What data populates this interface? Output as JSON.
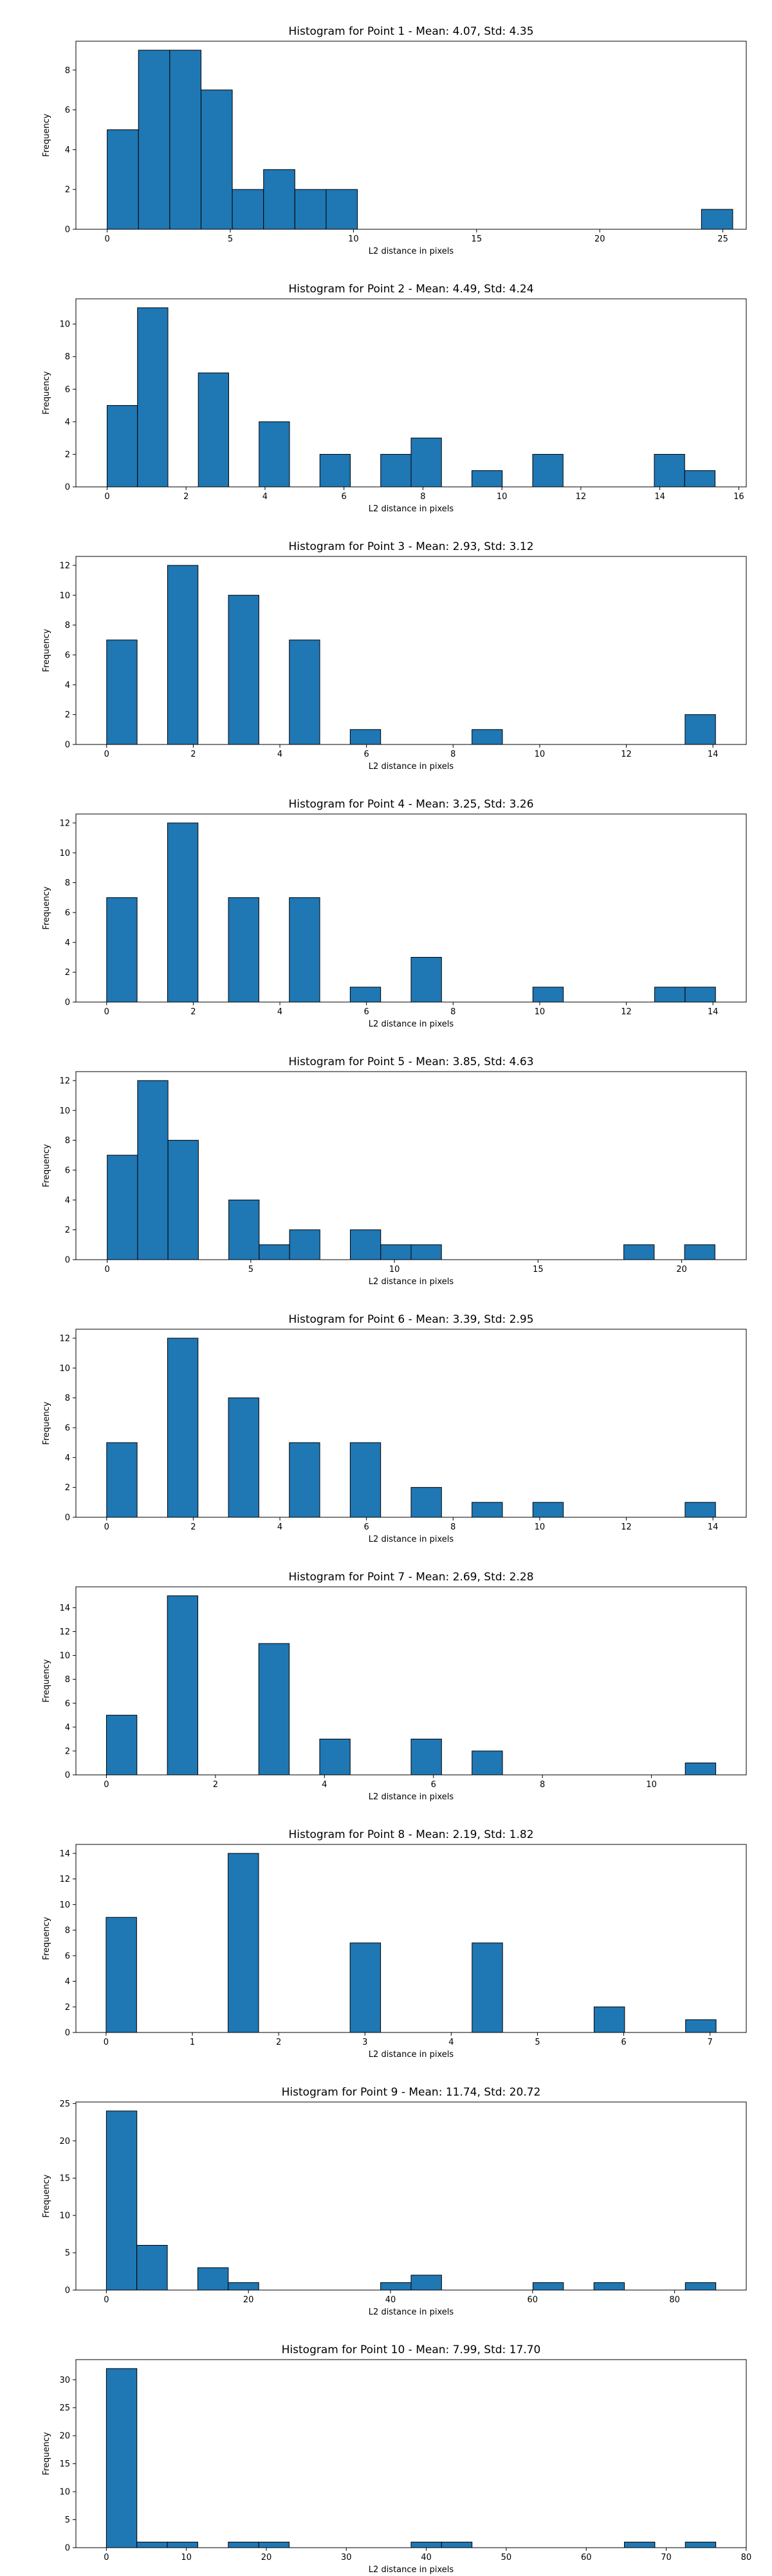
{
  "figure": {
    "bar_color": "#1f77b4",
    "edge_color": "#000000",
    "background": "#ffffff"
  },
  "chart_data": [
    {
      "type": "bar",
      "title": "Histogram for Point 1 - Mean: 4.07, Std: 4.35",
      "xlabel": "L2 distance in pixels",
      "ylabel": "Frequency",
      "xlim": [
        -1.27,
        25.95
      ],
      "ylim": [
        0,
        9.45
      ],
      "xticks": [
        0,
        5,
        10,
        15,
        20,
        25
      ],
      "xtick_labels": [
        "0",
        "5",
        "10",
        "15",
        "20",
        "25"
      ],
      "yticks": [
        0,
        2,
        4,
        6,
        8
      ],
      "ytick_labels": [
        "0",
        "2",
        "4",
        "6",
        "8"
      ],
      "bin_edges": [
        0.0,
        1.27,
        2.54,
        3.81,
        5.08,
        6.35,
        7.62,
        8.89,
        10.16,
        11.43,
        12.7,
        13.97,
        15.24,
        16.51,
        17.78,
        19.05,
        20.32,
        21.59,
        22.86,
        24.13,
        25.4
      ],
      "counts": [
        5,
        9,
        9,
        7,
        2,
        3,
        2,
        2,
        0,
        0,
        0,
        0,
        0,
        0,
        0,
        0,
        0,
        0,
        0,
        1
      ],
      "grid": false,
      "legend": "none"
    },
    {
      "type": "bar",
      "title": "Histogram for Point 2 - Mean: 4.49, Std: 4.24",
      "xlabel": "L2 distance in pixels",
      "ylabel": "Frequency",
      "xlim": [
        -0.79,
        16.19
      ],
      "ylim": [
        0,
        11.55
      ],
      "xticks": [
        0,
        2,
        4,
        6,
        8,
        10,
        12,
        14,
        16
      ],
      "xtick_labels": [
        "0",
        "2",
        "4",
        "6",
        "8",
        "10",
        "12",
        "14",
        "16"
      ],
      "yticks": [
        0,
        2,
        4,
        6,
        8,
        10
      ],
      "ytick_labels": [
        "0",
        "2",
        "4",
        "6",
        "8",
        "10"
      ],
      "bin_edges": [
        0.0,
        0.77,
        1.54,
        2.31,
        3.08,
        3.85,
        4.62,
        5.39,
        6.16,
        6.93,
        7.7,
        8.47,
        9.24,
        10.01,
        10.78,
        11.55,
        12.32,
        13.09,
        13.86,
        14.63,
        15.4
      ],
      "counts": [
        5,
        11,
        0,
        7,
        0,
        4,
        0,
        2,
        0,
        2,
        3,
        0,
        1,
        0,
        2,
        0,
        0,
        0,
        2,
        1
      ],
      "grid": false,
      "legend": "none"
    },
    {
      "type": "bar",
      "title": "Histogram for Point 3 - Mean: 2.93, Std: 3.12",
      "xlabel": "L2 distance in pixels",
      "ylabel": "Frequency",
      "xlim": [
        -0.71,
        14.77
      ],
      "ylim": [
        0,
        12.6
      ],
      "xticks": [
        0,
        2,
        4,
        6,
        8,
        10,
        12,
        14
      ],
      "xtick_labels": [
        "0",
        "2",
        "4",
        "6",
        "8",
        "10",
        "12",
        "14"
      ],
      "yticks": [
        0,
        2,
        4,
        6,
        8,
        10,
        12
      ],
      "ytick_labels": [
        "0",
        "2",
        "4",
        "6",
        "8",
        "10",
        "12"
      ],
      "bin_edges": [
        0.0,
        0.703,
        1.406,
        2.109,
        2.812,
        3.515,
        4.218,
        4.921,
        5.624,
        6.327,
        7.03,
        7.733,
        8.436,
        9.139,
        9.842,
        10.545,
        11.248,
        11.951,
        12.654,
        13.357,
        14.06
      ],
      "counts": [
        7,
        0,
        12,
        0,
        10,
        0,
        7,
        0,
        1,
        0,
        0,
        0,
        1,
        0,
        0,
        0,
        0,
        0,
        0,
        2
      ],
      "grid": false,
      "legend": "none"
    },
    {
      "type": "bar",
      "title": "Histogram for Point 4 - Mean: 3.25, Std: 3.26",
      "xlabel": "L2 distance in pixels",
      "ylabel": "Frequency",
      "xlim": [
        -0.71,
        14.77
      ],
      "ylim": [
        0,
        12.6
      ],
      "xticks": [
        0,
        2,
        4,
        6,
        8,
        10,
        12,
        14
      ],
      "xtick_labels": [
        "0",
        "2",
        "4",
        "6",
        "8",
        "10",
        "12",
        "14"
      ],
      "yticks": [
        0,
        2,
        4,
        6,
        8,
        10,
        12
      ],
      "ytick_labels": [
        "0",
        "2",
        "4",
        "6",
        "8",
        "10",
        "12"
      ],
      "bin_edges": [
        0.0,
        0.703,
        1.406,
        2.109,
        2.812,
        3.515,
        4.218,
        4.921,
        5.624,
        6.327,
        7.03,
        7.733,
        8.436,
        9.139,
        9.842,
        10.545,
        11.248,
        11.951,
        12.654,
        13.357,
        14.06
      ],
      "counts": [
        7,
        0,
        12,
        0,
        7,
        0,
        7,
        0,
        1,
        0,
        3,
        0,
        0,
        0,
        1,
        0,
        0,
        0,
        1,
        1
      ],
      "grid": false,
      "legend": "none"
    },
    {
      "type": "bar",
      "title": "Histogram for Point 5 - Mean: 3.85, Std: 4.63",
      "xlabel": "L2 distance in pixels",
      "ylabel": "Frequency",
      "xlim": [
        -1.09,
        22.25
      ],
      "ylim": [
        0,
        12.6
      ],
      "xticks": [
        0,
        5,
        10,
        15,
        20
      ],
      "xtick_labels": [
        "0",
        "5",
        "10",
        "15",
        "20"
      ],
      "yticks": [
        0,
        2,
        4,
        6,
        8,
        10,
        12
      ],
      "ytick_labels": [
        "0",
        "2",
        "4",
        "6",
        "8",
        "10",
        "12"
      ],
      "bin_edges": [
        0.0,
        1.058,
        2.116,
        3.174,
        4.232,
        5.29,
        6.348,
        7.406,
        8.464,
        9.522,
        10.58,
        11.638,
        12.696,
        13.754,
        14.812,
        15.87,
        16.928,
        17.986,
        19.044,
        20.102,
        21.16
      ],
      "counts": [
        7,
        12,
        8,
        0,
        4,
        1,
        2,
        0,
        2,
        1,
        1,
        0,
        0,
        0,
        0,
        0,
        0,
        1,
        0,
        1
      ],
      "grid": false,
      "legend": "none"
    },
    {
      "type": "bar",
      "title": "Histogram for Point 6 - Mean: 3.39, Std: 2.95",
      "xlabel": "L2 distance in pixels",
      "ylabel": "Frequency",
      "xlim": [
        -0.71,
        14.77
      ],
      "ylim": [
        0,
        12.6
      ],
      "xticks": [
        0,
        2,
        4,
        6,
        8,
        10,
        12,
        14
      ],
      "xtick_labels": [
        "0",
        "2",
        "4",
        "6",
        "8",
        "10",
        "12",
        "14"
      ],
      "yticks": [
        0,
        2,
        4,
        6,
        8,
        10,
        12
      ],
      "ytick_labels": [
        "0",
        "2",
        "4",
        "6",
        "8",
        "10",
        "12"
      ],
      "bin_edges": [
        0.0,
        0.703,
        1.406,
        2.109,
        2.812,
        3.515,
        4.218,
        4.921,
        5.624,
        6.327,
        7.03,
        7.733,
        8.436,
        9.139,
        9.842,
        10.545,
        11.248,
        11.951,
        12.654,
        13.357,
        14.06
      ],
      "counts": [
        5,
        0,
        12,
        0,
        8,
        0,
        5,
        0,
        5,
        0,
        2,
        0,
        1,
        0,
        1,
        0,
        0,
        0,
        0,
        1
      ],
      "grid": false,
      "legend": "none"
    },
    {
      "type": "bar",
      "title": "Histogram for Point 7 - Mean: 2.69, Std: 2.28",
      "xlabel": "L2 distance in pixels",
      "ylabel": "Frequency",
      "xlim": [
        -0.56,
        11.74
      ],
      "ylim": [
        0,
        15.75
      ],
      "xticks": [
        0,
        2,
        4,
        6,
        8,
        10
      ],
      "xtick_labels": [
        "0",
        "2",
        "4",
        "6",
        "8",
        "10"
      ],
      "yticks": [
        0,
        2,
        4,
        6,
        8,
        10,
        12,
        14
      ],
      "ytick_labels": [
        "0",
        "2",
        "4",
        "6",
        "8",
        "10",
        "12",
        "14"
      ],
      "bin_edges": [
        0.0,
        0.559,
        1.118,
        1.677,
        2.236,
        2.795,
        3.354,
        3.913,
        4.472,
        5.031,
        5.59,
        6.149,
        6.708,
        7.267,
        7.826,
        8.385,
        8.944,
        9.503,
        10.062,
        10.621,
        11.18
      ],
      "counts": [
        5,
        0,
        15,
        0,
        0,
        11,
        0,
        3,
        0,
        0,
        3,
        0,
        2,
        0,
        0,
        0,
        0,
        0,
        0,
        1
      ],
      "grid": false,
      "legend": "none"
    },
    {
      "type": "bar",
      "title": "Histogram for Point 8 - Mean: 2.19, Std: 1.82",
      "xlabel": "L2 distance in pixels",
      "ylabel": "Frequency",
      "xlim": [
        -0.35,
        7.42
      ],
      "ylim": [
        0,
        14.7
      ],
      "xticks": [
        0,
        1,
        2,
        3,
        4,
        5,
        6,
        7
      ],
      "xtick_labels": [
        "0",
        "1",
        "2",
        "3",
        "4",
        "5",
        "6",
        "7"
      ],
      "yticks": [
        0,
        2,
        4,
        6,
        8,
        10,
        12,
        14
      ],
      "ytick_labels": [
        "0",
        "2",
        "4",
        "6",
        "8",
        "10",
        "12",
        "14"
      ],
      "bin_edges": [
        0.0,
        0.3535,
        0.707,
        1.0605,
        1.414,
        1.7675,
        2.121,
        2.4745,
        2.828,
        3.1815,
        3.535,
        3.8885,
        4.242,
        4.5955,
        4.949,
        5.3025,
        5.656,
        6.0095,
        6.363,
        6.7165,
        7.07
      ],
      "counts": [
        9,
        0,
        0,
        0,
        14,
        0,
        0,
        0,
        7,
        0,
        0,
        0,
        7,
        0,
        0,
        0,
        2,
        0,
        0,
        1
      ],
      "grid": false,
      "legend": "none"
    },
    {
      "type": "bar",
      "title": "Histogram for Point 9 - Mean: 11.74, Std: 20.72",
      "xlabel": "L2 distance in pixels",
      "ylabel": "Frequency",
      "xlim": [
        -4.29,
        90.09
      ],
      "ylim": [
        0,
        25.2
      ],
      "xticks": [
        0,
        20,
        40,
        60,
        80
      ],
      "xtick_labels": [
        "0",
        "20",
        "40",
        "60",
        "80"
      ],
      "yticks": [
        0,
        5,
        10,
        15,
        20,
        25
      ],
      "ytick_labels": [
        "0",
        "5",
        "10",
        "15",
        "20",
        "25"
      ],
      "bin_edges": [
        0.0,
        4.29,
        8.58,
        12.87,
        17.16,
        21.45,
        25.74,
        30.03,
        34.32,
        38.61,
        42.9,
        47.19,
        51.48,
        55.77,
        60.06,
        64.35,
        68.64,
        72.93,
        77.22,
        81.51,
        85.8
      ],
      "counts": [
        24,
        6,
        0,
        3,
        1,
        0,
        0,
        0,
        0,
        1,
        2,
        0,
        0,
        0,
        1,
        0,
        1,
        0,
        0,
        1
      ],
      "grid": false,
      "legend": "none"
    },
    {
      "type": "bar",
      "title": "Histogram for Point 10 - Mean: 7.99, Std: 17.70",
      "xlabel": "L2 distance in pixels",
      "ylabel": "Frequency",
      "xlim": [
        -3.81,
        80.01
      ],
      "ylim": [
        0,
        33.6
      ],
      "xticks": [
        0,
        10,
        20,
        30,
        40,
        50,
        60,
        70,
        80
      ],
      "xtick_labels": [
        "0",
        "10",
        "20",
        "30",
        "40",
        "50",
        "60",
        "70",
        "80"
      ],
      "yticks": [
        0,
        5,
        10,
        15,
        20,
        25,
        30
      ],
      "ytick_labels": [
        "0",
        "5",
        "10",
        "15",
        "20",
        "25",
        "30"
      ],
      "bin_edges": [
        0.0,
        3.81,
        7.62,
        11.43,
        15.24,
        19.05,
        22.86,
        26.67,
        30.48,
        34.29,
        38.1,
        41.91,
        45.72,
        49.53,
        53.34,
        57.15,
        60.96,
        64.77,
        68.58,
        72.39,
        76.2
      ],
      "counts": [
        32,
        1,
        1,
        0,
        1,
        1,
        0,
        0,
        0,
        0,
        1,
        1,
        0,
        0,
        0,
        0,
        0,
        1,
        0,
        1
      ],
      "grid": false,
      "legend": "none"
    }
  ]
}
